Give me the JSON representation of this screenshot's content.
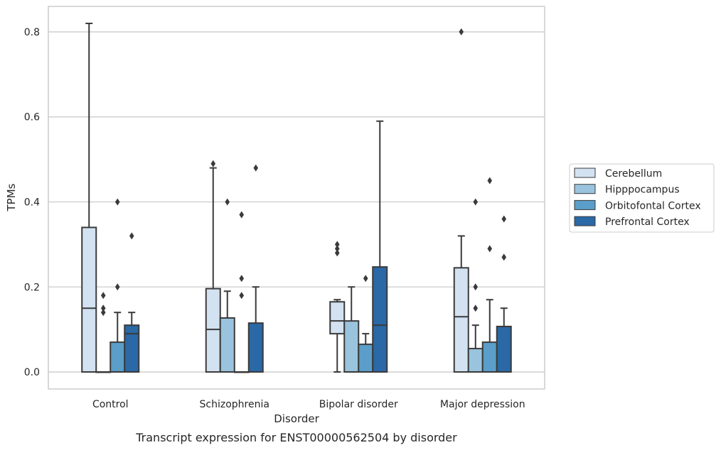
{
  "chart_data": {
    "type": "box",
    "caption": "Transcript expression for ENST00000562504 by disorder",
    "xlabel": "Disorder",
    "ylabel": "TPMs",
    "ylim": [
      -0.04,
      0.86
    ],
    "yticks": [
      0.0,
      0.2,
      0.4,
      0.6,
      0.8
    ],
    "ytick_labels": [
      "0.0",
      "0.2",
      "0.4",
      "0.6",
      "0.8"
    ],
    "categories": [
      "Control",
      "Schizophrenia",
      "Bipolar disorder",
      "Major depression"
    ],
    "grid": "horizontal",
    "legend_position": "right",
    "series": [
      {
        "name": "Cerebellum",
        "color": "#d3e2f1",
        "boxes": [
          {
            "min": 0.0,
            "q1": 0.0,
            "median": 0.15,
            "q3": 0.34,
            "max": 0.82,
            "outliers": []
          },
          {
            "min": 0.0,
            "q1": 0.0,
            "median": 0.1,
            "q3": 0.196,
            "max": 0.48,
            "outliers": [
              0.49
            ]
          },
          {
            "min": 0.0,
            "q1": 0.09,
            "median": 0.12,
            "q3": 0.165,
            "max": 0.17,
            "outliers": [
              0.28,
              0.29,
              0.3
            ]
          },
          {
            "min": 0.0,
            "q1": 0.0,
            "median": 0.13,
            "q3": 0.245,
            "max": 0.32,
            "outliers": [
              0.8
            ]
          }
        ]
      },
      {
        "name": "Hipppocampus",
        "color": "#9ac4dd",
        "boxes": [
          {
            "min": 0.0,
            "q1": 0.0,
            "median": 0.0,
            "q3": 0.0,
            "max": 0.0,
            "outliers": [
              0.14,
              0.15,
              0.18
            ]
          },
          {
            "min": 0.0,
            "q1": 0.0,
            "median": 0.0,
            "q3": 0.127,
            "max": 0.19,
            "outliers": [
              0.4
            ]
          },
          {
            "min": 0.0,
            "q1": 0.0,
            "median": 0.0,
            "q3": 0.12,
            "max": 0.2,
            "outliers": []
          },
          {
            "min": 0.0,
            "q1": 0.0,
            "median": 0.0,
            "q3": 0.055,
            "max": 0.11,
            "outliers": [
              0.15,
              0.2,
              0.4
            ]
          }
        ]
      },
      {
        "name": "Orbitofontal Cortex",
        "color": "#5b9ec9",
        "boxes": [
          {
            "min": 0.0,
            "q1": 0.0,
            "median": 0.0,
            "q3": 0.07,
            "max": 0.14,
            "outliers": [
              0.2,
              0.4
            ]
          },
          {
            "min": 0.0,
            "q1": 0.0,
            "median": 0.0,
            "q3": 0.0,
            "max": 0.0,
            "outliers": [
              0.18,
              0.22,
              0.37
            ]
          },
          {
            "min": 0.0,
            "q1": 0.0,
            "median": 0.0,
            "q3": 0.065,
            "max": 0.09,
            "outliers": [
              0.22
            ]
          },
          {
            "min": 0.0,
            "q1": 0.0,
            "median": 0.0,
            "q3": 0.07,
            "max": 0.17,
            "outliers": [
              0.29,
              0.45
            ]
          }
        ]
      },
      {
        "name": "Prefrontal Cortex",
        "color": "#2a68a6",
        "boxes": [
          {
            "min": 0.0,
            "q1": 0.0,
            "median": 0.09,
            "q3": 0.11,
            "max": 0.14,
            "outliers": [
              0.32
            ]
          },
          {
            "min": 0.0,
            "q1": 0.0,
            "median": 0.0,
            "q3": 0.115,
            "max": 0.2,
            "outliers": [
              0.48
            ]
          },
          {
            "min": 0.0,
            "q1": 0.0,
            "median": 0.11,
            "q3": 0.247,
            "max": 0.59,
            "outliers": []
          },
          {
            "min": 0.0,
            "q1": 0.0,
            "median": 0.0,
            "q3": 0.107,
            "max": 0.15,
            "outliers": [
              0.27,
              0.36
            ]
          }
        ]
      }
    ]
  }
}
